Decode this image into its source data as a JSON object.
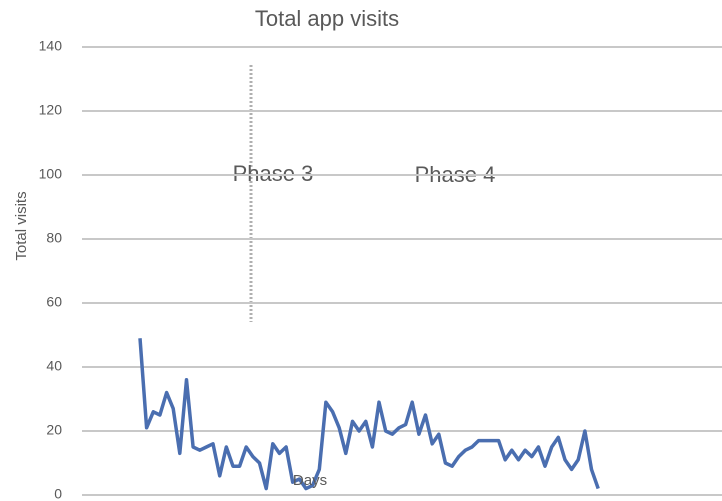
{
  "chart_data": {
    "type": "line",
    "title": "Total app visits",
    "y_label": "Total visits",
    "x_label": "Days",
    "annotations": [
      "Phase 3",
      "Phase 4"
    ],
    "categories": [
      null,
      null,
      null,
      null,
      null,
      null,
      null,
      null,
      null,
      null,
      null,
      null,
      null,
      null,
      null,
      null,
      null,
      null,
      null,
      null,
      null,
      null,
      null,
      null,
      null,
      null,
      null,
      null,
      null,
      null,
      null,
      null,
      null,
      null,
      null,
      null,
      null,
      null,
      null,
      null,
      null,
      null,
      null,
      null,
      null,
      null,
      null,
      null,
      null,
      null,
      null,
      null,
      null,
      null,
      null,
      null,
      null,
      null,
      null,
      null,
      null,
      null,
      null,
      null,
      null,
      null,
      null,
      null,
      null,
      null
    ],
    "series": [
      {
        "name": "Total visits",
        "color": "#4a6eb0",
        "values": [
          49,
          21,
          26,
          25,
          32,
          27,
          13,
          36,
          15,
          14,
          15,
          16,
          6,
          15,
          9,
          9,
          15,
          12,
          10,
          2,
          16,
          13,
          15,
          4,
          5,
          2,
          3,
          8,
          29,
          26,
          21,
          13,
          23,
          20,
          23,
          15,
          29,
          20,
          19,
          21,
          22,
          29,
          19,
          25,
          16,
          19,
          10,
          9,
          12,
          14,
          15,
          17,
          17,
          17,
          17,
          11,
          14,
          11,
          14,
          12,
          15,
          9,
          15,
          18,
          11,
          8,
          11,
          20,
          8,
          2
        ]
      }
    ],
    "ylim": [
      0,
      140
    ],
    "yticks": [
      0,
      20,
      40,
      60,
      80,
      100,
      120,
      140
    ],
    "grid": true
  }
}
